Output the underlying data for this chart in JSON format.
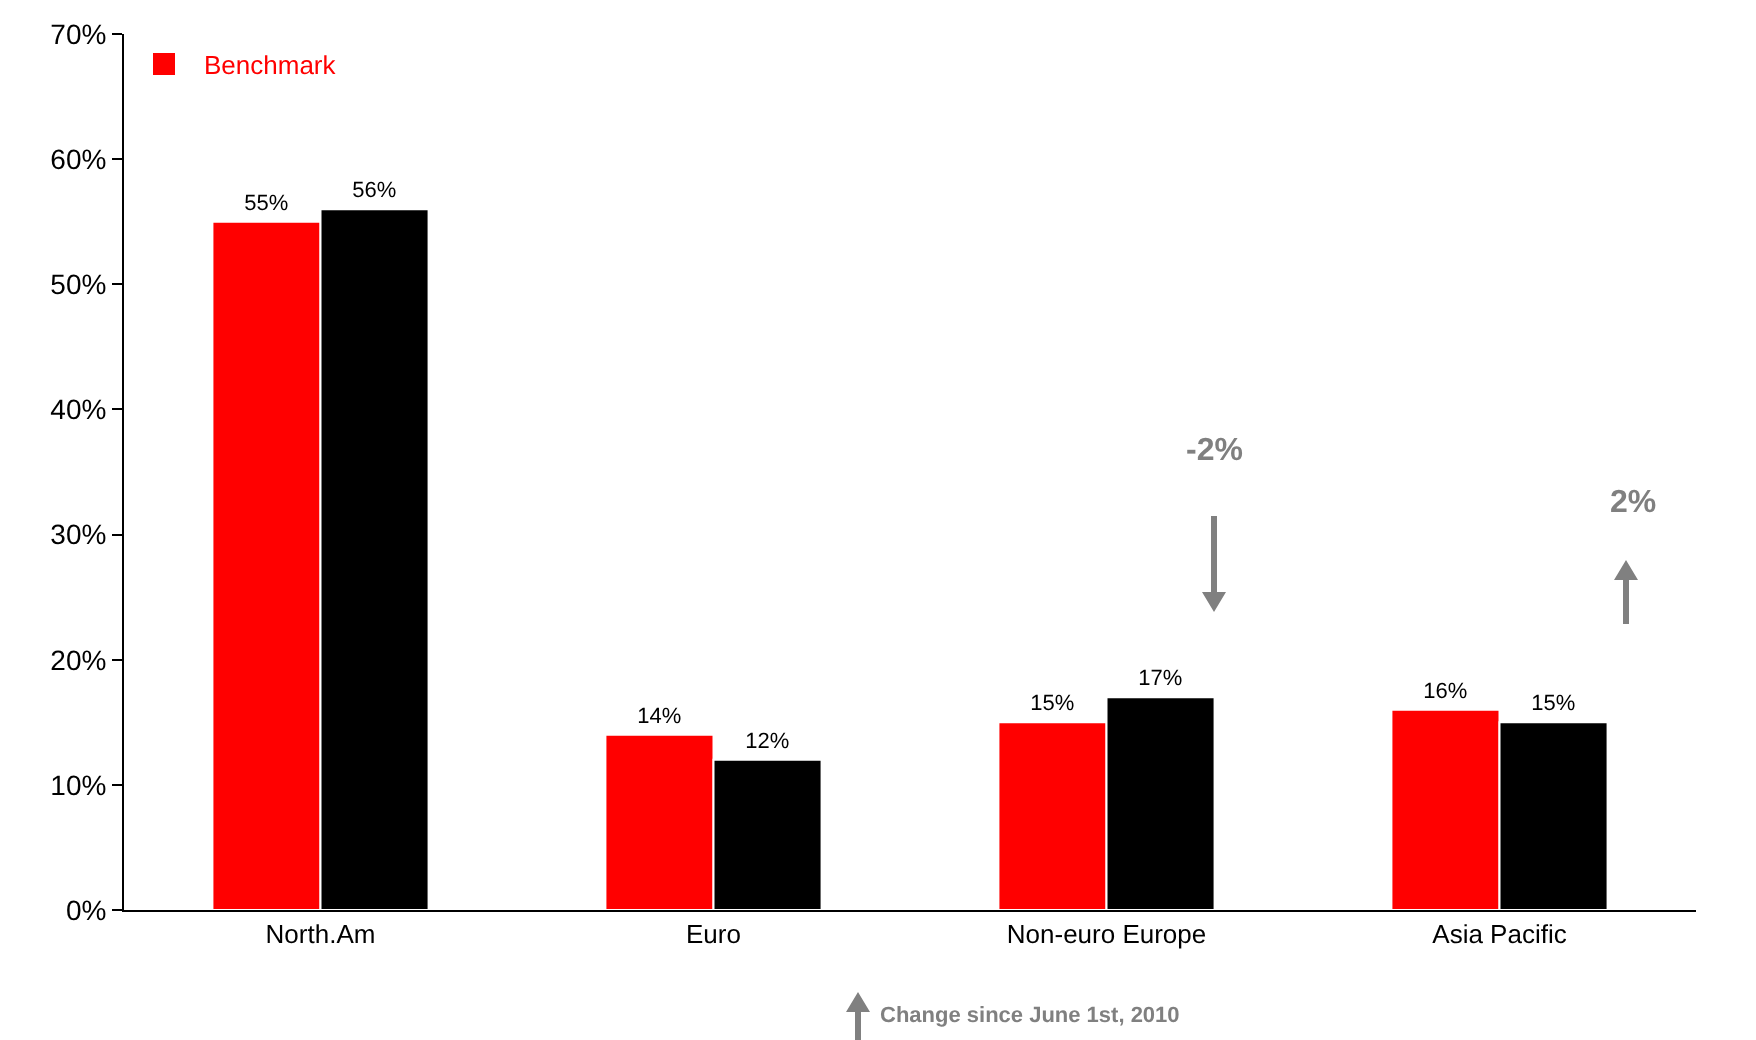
{
  "chart_data": {
    "type": "bar",
    "categories": [
      "North.Am",
      "Euro",
      "Non-euro Europe",
      "Asia Pacific"
    ],
    "series": [
      {
        "name": "Benchmark",
        "color": "#ff0000",
        "values": [
          55,
          14,
          15,
          16
        ],
        "value_labels": [
          "55%",
          "14%",
          "15%",
          "16%"
        ]
      },
      {
        "color": "#000000",
        "values": [
          56,
          12,
          17,
          15
        ],
        "value_labels": [
          "56%",
          "12%",
          "17%",
          "15%"
        ]
      }
    ],
    "ylim": [
      0,
      70
    ],
    "yticks": [
      {
        "value": 0,
        "label": "0%"
      },
      {
        "value": 10,
        "label": "10%"
      },
      {
        "value": 20,
        "label": "20%"
      },
      {
        "value": 30,
        "label": "30%"
      },
      {
        "value": 40,
        "label": "40%"
      },
      {
        "value": 50,
        "label": "50%"
      },
      {
        "value": 60,
        "label": "60%"
      },
      {
        "value": 70,
        "label": "70%"
      }
    ],
    "grid": false,
    "legend": "top left",
    "annotations": [
      "-2%",
      "2%",
      "Change since June 1st, 2010"
    ]
  }
}
